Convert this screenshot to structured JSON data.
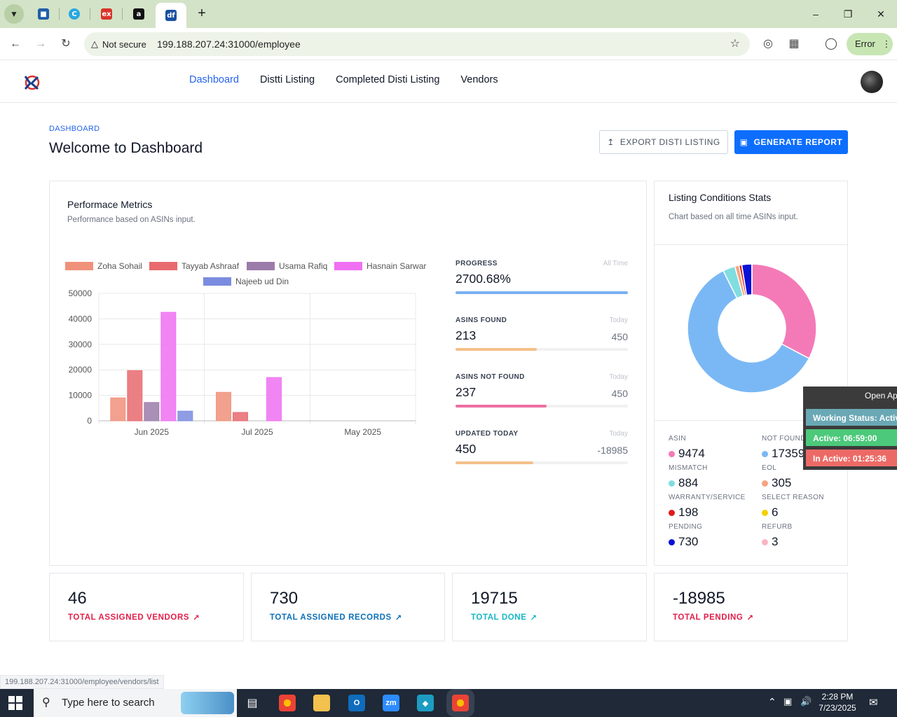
{
  "browser": {
    "url": "199.188.207.24:31000/employee",
    "not_secure": "Not secure",
    "error_label": "Error",
    "tabs": [
      {
        "icon": "trello-icon",
        "color": "#1f5fa8",
        "active": false
      },
      {
        "icon": "circle-c-icon",
        "color": "#2aa8e0",
        "active": false
      },
      {
        "icon": "ex-icon",
        "color": "#d9332b",
        "active": false
      },
      {
        "icon": "amazon-icon",
        "color": "#111111",
        "active": false
      },
      {
        "icon": "df-icon",
        "color": "#1a4fa0",
        "active": true
      }
    ]
  },
  "header": {
    "nav": [
      "Dashboard",
      "Distti Listing",
      "Completed Disti Listing",
      "Vendors"
    ]
  },
  "page": {
    "breadcrumb": "DASHBOARD",
    "title": "Welcome to Dashboard",
    "export_button": "EXPORT DISTI LISTING",
    "report_button": "GENERATE REPORT"
  },
  "performance": {
    "title": "Performace Metrics",
    "subtitle": "Performance based on ASINs input."
  },
  "chart_data": [
    {
      "type": "bar",
      "categories": [
        "Jun 2025",
        "Jul 2025",
        "May 2025"
      ],
      "ylim": [
        0,
        50000
      ],
      "yticks": [
        "0",
        "10000",
        "20000",
        "30000",
        "40000",
        "50000"
      ],
      "series": [
        {
          "name": "Zoha Sohail",
          "color": "#f0917a",
          "values": [
            9000,
            11200,
            0
          ]
        },
        {
          "name": "Tayyab Ashraaf",
          "color": "#e86a6e",
          "values": [
            19700,
            3300,
            0
          ]
        },
        {
          "name": "Usama Rafiq",
          "color": "#9b7baa",
          "values": [
            7200,
            0,
            0
          ]
        },
        {
          "name": "Hasnain Sarwar",
          "color": "#f070f2",
          "values": [
            42600,
            17000,
            0
          ]
        },
        {
          "name": "Najeeb ud Din",
          "color": "#7b8ce0",
          "values": [
            3800,
            0,
            0
          ]
        }
      ]
    },
    {
      "type": "pie",
      "title": "Listing Conditions Stats",
      "subtitle": "Chart based on all time ASINs input.",
      "slices": [
        {
          "name": "ASIN",
          "value": 9474,
          "color": "#f47ab7"
        },
        {
          "name": "NOT FOUND",
          "value": 17359,
          "color": "#7ab8f5"
        },
        {
          "name": "MISMATCH",
          "value": 884,
          "color": "#80dde0"
        },
        {
          "name": "EOL",
          "value": 305,
          "color": "#f4a582"
        },
        {
          "name": "WARRANTY/SERVICE",
          "value": 198,
          "color": "#e01b1b"
        },
        {
          "name": "SELECT REASON",
          "value": 6,
          "color": "#f5d000"
        },
        {
          "name": "PENDING",
          "value": 730,
          "color": "#0a12d8"
        },
        {
          "name": "REFURB",
          "value": 3,
          "color": "#f8b6c3"
        }
      ]
    }
  ],
  "metrics": [
    {
      "label": "PROGRESS",
      "hint": "All Time",
      "value": "2700.68%",
      "right": "",
      "fill": 1.0,
      "color": "#7ab0f2"
    },
    {
      "label": "ASINS FOUND",
      "hint": "Today",
      "value": "213",
      "right": "450",
      "fill": 0.47,
      "color": "#f4c08a"
    },
    {
      "label": "ASINS NOT FOUND",
      "hint": "Today",
      "value": "237",
      "right": "450",
      "fill": 0.53,
      "color": "#ee6fa2"
    },
    {
      "label": "UPDATED TODAY",
      "hint": "Today",
      "value": "450",
      "right": "-18985",
      "fill": 0.45,
      "color": "#f4c08a"
    }
  ],
  "listing_stats": [
    {
      "label": "ASIN",
      "value": "9474",
      "color": "#f47ab7"
    },
    {
      "label": "NOT FOUND",
      "value": "17359",
      "color": "#7ab8f5"
    },
    {
      "label": "MISMATCH",
      "value": "884",
      "color": "#80dde0"
    },
    {
      "label": "EOL",
      "value": "305",
      "color": "#f4a582"
    },
    {
      "label": "WARRANTY/SERVICE",
      "value": "198",
      "color": "#e01b1b"
    },
    {
      "label": "SELECT REASON",
      "value": "6",
      "color": "#f5d000"
    },
    {
      "label": "PENDING",
      "value": "730",
      "color": "#0a12d8"
    },
    {
      "label": "REFURB",
      "value": "3",
      "color": "#f8b6c3"
    }
  ],
  "totals": [
    {
      "value": "46",
      "label": "TOTAL ASSIGNED VENDORS",
      "color": "#e11d48"
    },
    {
      "value": "730",
      "label": "TOTAL ASSIGNED RECORDS",
      "color": "#0b6fb8"
    },
    {
      "value": "19715",
      "label": "TOTAL DONE",
      "color": "#14b8c4"
    },
    {
      "value": "-18985",
      "label": "TOTAL PENDING",
      "color": "#e11d48"
    }
  ],
  "widget": {
    "open": "Open Ap",
    "working": "Working Status: Activ",
    "active": "Active: 06:59:00",
    "inactive": "In Active: 01:25:36"
  },
  "status_url": "199.188.207.24:31000/employee/vendors/list",
  "taskbar": {
    "search_placeholder": "Type here to search",
    "time": "2:28 PM",
    "date": "7/23/2025"
  }
}
